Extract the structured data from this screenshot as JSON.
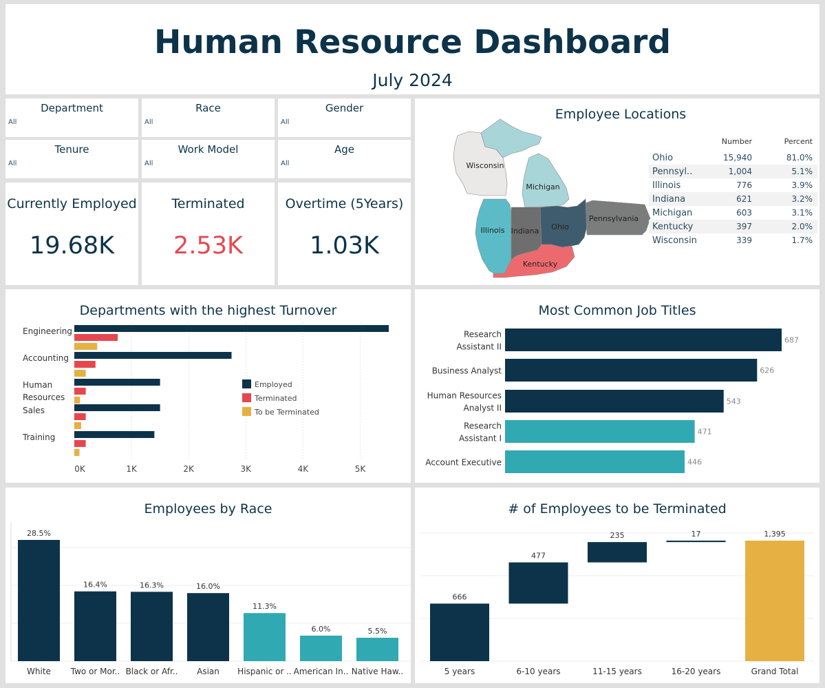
{
  "header": {
    "title": "Human Resource Dashboard",
    "subtitle": "July 2024"
  },
  "filters": [
    {
      "label": "Department",
      "value": "All"
    },
    {
      "label": "Race",
      "value": "All"
    },
    {
      "label": "Gender",
      "value": "All"
    },
    {
      "label": "Tenure",
      "value": "All"
    },
    {
      "label": "Work Model",
      "value": "All"
    },
    {
      "label": "Age",
      "value": "All"
    }
  ],
  "kpis": [
    {
      "label": "Currently Employed",
      "value": "19.68K",
      "color": "#0c3349"
    },
    {
      "label": "Terminated",
      "value": "2.53K",
      "color": "#e6474f"
    },
    {
      "label": "Overtime (5Years)",
      "value": "1.03K",
      "color": "#0c3349"
    }
  ],
  "locations": {
    "title": "Employee Locations",
    "col_number": "Number",
    "col_percent": "Percent",
    "map_labels": [
      "Wisconsin",
      "Michigan",
      "Illinois",
      "Indiana",
      "Ohio",
      "Pennsylvania",
      "Kentucky"
    ],
    "rows": [
      {
        "state": "Ohio",
        "number": "15,940",
        "percent": "81.0%"
      },
      {
        "state": "Pennsyl..",
        "number": "1,004",
        "percent": "5.1%"
      },
      {
        "state": "Illinois",
        "number": "776",
        "percent": "3.9%"
      },
      {
        "state": "Indiana",
        "number": "621",
        "percent": "3.2%"
      },
      {
        "state": "Michigan",
        "number": "603",
        "percent": "3.1%"
      },
      {
        "state": "Kentucky",
        "number": "397",
        "percent": "2.0%"
      },
      {
        "state": "Wisconsin",
        "number": "339",
        "percent": "1.7%"
      }
    ]
  },
  "colors": {
    "navy": "#0c3349",
    "red": "#e6474f",
    "gold": "#e6b142",
    "teal": "#30a9b3"
  },
  "chart_data": [
    {
      "id": "turnover",
      "type": "bar",
      "orientation": "horizontal",
      "title": "Departments with the highest Turnover",
      "categories": [
        "Engineering",
        "Accounting",
        "Human Resources",
        "Sales",
        "Training"
      ],
      "category_lines": [
        [
          "Engineering"
        ],
        [
          "Accounting"
        ],
        [
          "Human",
          "Resources"
        ],
        [
          "Sales"
        ],
        [
          "Training"
        ]
      ],
      "series": [
        {
          "name": "Employed",
          "values": [
            5500,
            2750,
            1500,
            1500,
            1400
          ],
          "color": "#0c3349"
        },
        {
          "name": "Terminated",
          "values": [
            760,
            370,
            200,
            200,
            200
          ],
          "color": "#e6474f"
        },
        {
          "name": "To be Terminated",
          "values": [
            400,
            200,
            100,
            120,
            90
          ],
          "color": "#e6b142"
        }
      ],
      "ticks": [
        "0K",
        "1K",
        "2K",
        "3K",
        "4K",
        "5K"
      ],
      "xlim": [
        0,
        5500
      ],
      "legend_position": "center-right"
    },
    {
      "id": "jobs",
      "type": "bar",
      "orientation": "horizontal",
      "title": "Most Common Job Titles",
      "categories": [
        "Research Assistant II",
        "Business Analyst",
        "Human Resources Analyst II",
        "Research Assistant I",
        "Account Executive"
      ],
      "category_lines": [
        [
          "Research",
          "Assistant II"
        ],
        [
          "Business Analyst"
        ],
        [
          "Human Resources",
          "Analyst II"
        ],
        [
          "Research",
          "Assistant I"
        ],
        [
          "Account Executive"
        ]
      ],
      "values": [
        687,
        626,
        543,
        471,
        446
      ],
      "colors": [
        "#0c3349",
        "#0c3349",
        "#0c3349",
        "#30a9b3",
        "#30a9b3"
      ],
      "labels": [
        "687",
        "626",
        "543",
        "471",
        "446"
      ]
    },
    {
      "id": "race",
      "type": "bar",
      "title": "Employees by Race",
      "categories": [
        "White",
        "Two or Mor..",
        "Black or Afr..",
        "Asian",
        "Hispanic or ..",
        "American In..",
        "Native Haw.."
      ],
      "values": [
        28.5,
        16.4,
        16.3,
        16.0,
        11.3,
        6.0,
        5.5
      ],
      "labels": [
        "28.5%",
        "16.4%",
        "16.3%",
        "16.0%",
        "11.3%",
        "6.0%",
        "5.5%"
      ],
      "colors": [
        "#0c3349",
        "#0c3349",
        "#0c3349",
        "#0c3349",
        "#30a9b3",
        "#30a9b3",
        "#30a9b3"
      ],
      "ylim": [
        0,
        30
      ],
      "grid": true
    },
    {
      "id": "terminated",
      "type": "bar",
      "subtype": "waterfall",
      "title": "# of Employees to be Terminated",
      "categories": [
        "5 years",
        "6-10 years",
        "11-15 years",
        "16-20 years",
        "Grand Total"
      ],
      "values": [
        666,
        477,
        235,
        17,
        1395
      ],
      "labels": [
        "666",
        "477",
        "235",
        "17",
        "1,395"
      ],
      "colors": [
        "#0c3349",
        "#0c3349",
        "#0c3349",
        "#0c3349",
        "#e6b142"
      ],
      "ylim": [
        0,
        1500
      ],
      "grid": true
    }
  ]
}
